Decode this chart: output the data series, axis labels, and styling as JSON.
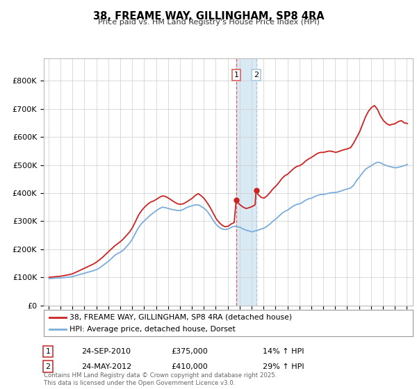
{
  "title": "38, FREAME WAY, GILLINGHAM, SP8 4RA",
  "subtitle": "Price paid vs. HM Land Registry's House Price Index (HPI)",
  "legend_line1": "38, FREAME WAY, GILLINGHAM, SP8 4RA (detached house)",
  "legend_line2": "HPI: Average price, detached house, Dorset",
  "transaction1_date": "24-SEP-2010",
  "transaction1_price": "£375,000",
  "transaction1_hpi": "14% ↑ HPI",
  "transaction1_year": 2010.73,
  "transaction2_date": "24-MAY-2012",
  "transaction2_price": "£410,000",
  "transaction2_hpi": "29% ↑ HPI",
  "transaction2_year": 2012.39,
  "footer": "Contains HM Land Registry data © Crown copyright and database right 2025.\nThis data is licensed under the Open Government Licence v3.0.",
  "hpi_color": "#7aaddb",
  "price_color": "#cc2222",
  "marker_color": "#cc2222",
  "background_color": "#ffffff",
  "shading_color": "#daeaf5",
  "vline1_color": "#e06060",
  "vline2_color": "#aaccdd",
  "ylim_max": 880000,
  "xlim_start": 1994.6,
  "xlim_end": 2025.5,
  "ytick_labels": [
    "£0",
    "£100K",
    "£200K",
    "£300K",
    "£400K",
    "£500K",
    "£600K",
    "£700K",
    "£800K"
  ],
  "ytick_values": [
    0,
    100000,
    200000,
    300000,
    400000,
    500000,
    600000,
    700000,
    800000
  ]
}
